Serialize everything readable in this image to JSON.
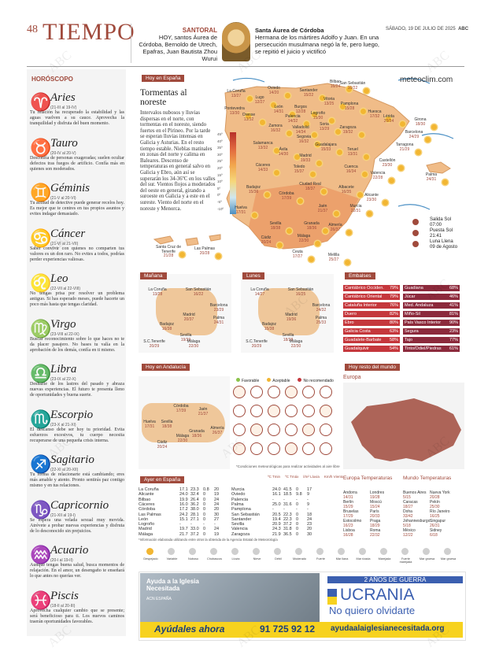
{
  "header": {
    "page_number": "48",
    "section": "TIEMPO",
    "date": "SÁBADO, 19 DE JULIO DE 2025",
    "paper": "ABC",
    "santoral_title": "SANTORAL",
    "santoral_text": "HOY, santos Áurea de Córdoba, Bernoldo de Utrech, Epafras, Juan Bautista Zhou Wurui",
    "saint_name": "Santa Áurea de Córdoba",
    "saint_text": "Hermana de los mártires Adolfo y Juan. En una persecución musulmana negó la fe, pero luego, se repitió el juicio y victificó"
  },
  "horoscope": {
    "title": "HORÓSCOPO",
    "signs": [
      {
        "glyph": "♈",
        "name": "Aries",
        "dates": "(21-III al 19-IV)",
        "text": "Tu relación ha recuperado la estabilidad y las aguas vuelven a su cauce. Aprovecha la tranquilidad y disfruta del buen momento."
      },
      {
        "glyph": "♉",
        "name": "Tauro",
        "dates": "(20-IV al 20-V)",
        "text": "Desconfía de personas exageradas; suelen ocultar defectos tras fuegos de artificio. Confía más en quienes son moderados."
      },
      {
        "glyph": "♊",
        "name": "Géminis",
        "dates": "(21-V al 20-VI)",
        "text": "Tu actitud de detective puede generar recelos hoy. Es mejor que te centres en tus propios asuntos y evites indagar demasiado."
      },
      {
        "glyph": "♋",
        "name": "Cáncer",
        "dates": "(21-VI al 21-VII)",
        "text": "Saber convivir con quienes no comparten tus valores es un don raro. No evites a todos, podrías perder experiencias valiosas."
      },
      {
        "glyph": "♌",
        "name": "Leo",
        "dates": "(22-VII al 22-VIII)",
        "text": "No tengas prisa por resolver un problema antiguo. Si has esperado meses, puede hacerte un poco más hasta que tengas claridad."
      },
      {
        "glyph": "♍",
        "name": "Virgo",
        "dates": "(23-VIII al 22-IX)",
        "text": "Buscar reconocimiento sobre lo que haces no te da placer pasajero. No bases tu valía en la aprobación de los demás, confía en ti mismo."
      },
      {
        "glyph": "♎",
        "name": "Libra",
        "dates": "(23-IX al 22-X)",
        "text": "Deshazte de los lastres del pasado y abraza nuevas experiencias. El futuro te presenta lleno de oportunidades y buena suerte."
      },
      {
        "glyph": "♏",
        "name": "Escorpio",
        "dates": "(23-X al 21-XI)",
        "text": "El descanso debe ser hoy tu prioridad. Evita esfuerzos excesivos, tu cuerpo necesita recuperarse de una pequeña crisis interna."
      },
      {
        "glyph": "♐",
        "name": "Sagitario",
        "dates": "(22-XI al 20-XII)",
        "text": "Tu forma de relacionarte está cambiando; eres más amable y atento. Pronto sentirás paz contigo mismo y en tus relaciones."
      },
      {
        "glyph": "♑",
        "name": "Capricornio",
        "dates": "(21-XII al 19-I)",
        "text": "Se espera una velada sexual muy movida. Atrévete a probar nuevas experiencias y disfruta de lo desconocido sin prejuicios."
      },
      {
        "glyph": "♒",
        "name": "Acuario",
        "dates": "(20-I al 19-II)",
        "text": "Aunque tengas buena salud, busca momentos de relajación. En el amor, un desengaño te enseñará lo que antes no querías ver."
      },
      {
        "glyph": "♓",
        "name": "Piscis",
        "dates": "(18-II al 20-III)",
        "text": "Aprovecha cualquier cambio que se presente; será beneficioso para ti. Los nuevos caminos traerán oportunidades favorables."
      }
    ]
  },
  "spain_map": {
    "tag": "Hoy en España",
    "site": "meteoclim.com",
    "headline": "Tormentas al noreste",
    "story": "Intervalos nubosos y lluvias dispersas en el norte, con tormentas en el noreste, siendo fuertes en el Pirineo. Por la tarde se esperan lluvias intensas en Galicia y Asturias. En el resto tiempo estable. Nieblas matinales en zonas del norte y calima en Baleares. Descenso de temperaturas en general salvo en Galicia y Ebro, aún así se superarán los 34-36ºC en los valles del sur. Vientos flojos a moderados del oeste en general, girando a suroeste en Galicia y a este en el sureste. Viento del norte en el noreste y Menorca.",
    "scale": [
      "45º",
      "40º",
      "35º",
      "30º",
      "25º",
      "20º",
      "15º",
      "10º",
      "5º",
      "0º",
      "-5º",
      "-10º"
    ],
    "cities": [
      {
        "name": "La Coruña",
        "t": "13/27"
      },
      {
        "name": "Oviedo",
        "t": "14/20"
      },
      {
        "name": "Santander",
        "t": "15/22"
      },
      {
        "name": "Bilbao",
        "t": "16/24"
      },
      {
        "name": "San Sebastián",
        "t": "16/22"
      },
      {
        "name": "Lugo",
        "t": "12/27"
      },
      {
        "name": "Pontevedra",
        "t": "13/30"
      },
      {
        "name": "Orense",
        "t": "13/32"
      },
      {
        "name": "León",
        "t": "14/31"
      },
      {
        "name": "Burgos",
        "t": "12/28"
      },
      {
        "name": "Vitoria",
        "t": "13/25"
      },
      {
        "name": "Pamplona",
        "t": "15/28"
      },
      {
        "name": "Huesca",
        "t": "17/32"
      },
      {
        "name": "Lérida",
        "t": "20/34"
      },
      {
        "name": "Girona",
        "t": "18/30"
      },
      {
        "name": "Barcelona",
        "t": "24/29"
      },
      {
        "name": "Palencia",
        "t": "14/32"
      },
      {
        "name": "Logroño",
        "t": "15/30"
      },
      {
        "name": "Zaragoza",
        "t": "19/32"
      },
      {
        "name": "Zamora",
        "t": "16/32"
      },
      {
        "name": "Valladolid",
        "t": "14/34"
      },
      {
        "name": "Soria",
        "t": "13/29"
      },
      {
        "name": "Tarragona",
        "t": "21/29"
      },
      {
        "name": "Salamanca",
        "t": "13/32"
      },
      {
        "name": "Segovia",
        "t": "16/32"
      },
      {
        "name": "Guadalajara",
        "t": "15/33"
      },
      {
        "name": "Teruel",
        "t": "13/31"
      },
      {
        "name": "Castellón",
        "t": "23/30"
      },
      {
        "name": "Ávila",
        "t": "14/30"
      },
      {
        "name": "Madrid",
        "t": "19/33"
      },
      {
        "name": "Cuenca",
        "t": "16/34"
      },
      {
        "name": "Palma",
        "t": "24/31"
      },
      {
        "name": "Cáceres",
        "t": "14/33"
      },
      {
        "name": "Toledo",
        "t": "15/37"
      },
      {
        "name": "Valencia",
        "t": "22/28"
      },
      {
        "name": "Badajoz",
        "t": "15/36"
      },
      {
        "name": "Ciudad Real",
        "t": "18/37"
      },
      {
        "name": "Albacete",
        "t": "16/35"
      },
      {
        "name": "Alicante",
        "t": "23/30"
      },
      {
        "name": "Huelva",
        "t": "17/31"
      },
      {
        "name": "Córdoba",
        "t": "17/39"
      },
      {
        "name": "Jaén",
        "t": "21/37"
      },
      {
        "name": "Murcia",
        "t": "22/31"
      },
      {
        "name": "Sevilla",
        "t": "18/38"
      },
      {
        "name": "Granada",
        "t": "18/36"
      },
      {
        "name": "Almería",
        "t": "26/37"
      },
      {
        "name": "Cádiz",
        "t": "20/24"
      },
      {
        "name": "Málaga",
        "t": "22/30"
      },
      {
        "name": "Ceuta",
        "t": "17/27"
      },
      {
        "name": "Melilla",
        "t": "25/27"
      },
      {
        "name": "Santa Cruz de Tenerife",
        "t": "21/28"
      },
      {
        "name": "Las Palmas",
        "t": "20/28"
      }
    ],
    "sun": [
      {
        "label": "Salida Sol",
        "value": "07:00"
      },
      {
        "label": "Puesta Sol",
        "value": "21:41"
      },
      {
        "label": "Luna Llena",
        "value": "09 de Agosto"
      }
    ]
  },
  "small_maps": [
    {
      "tag": "Mañana",
      "cities": [
        {
          "name": "La Coruña",
          "t": "13/28"
        },
        {
          "name": "San Sebastián",
          "t": "16/22"
        },
        {
          "name": "Barcelona",
          "t": "23/29"
        },
        {
          "name": "Madrid",
          "t": "20/37"
        },
        {
          "name": "Palma",
          "t": "24/31"
        },
        {
          "name": "Badajoz",
          "t": "16/38"
        },
        {
          "name": "Sevilla",
          "t": "19/39"
        },
        {
          "name": "Málaga",
          "t": "22/30"
        },
        {
          "name": "S.C.Tenerife",
          "t": "20/29"
        }
      ]
    },
    {
      "tag": "Lunes",
      "cities": [
        {
          "name": "La Coruña",
          "t": "14/27"
        },
        {
          "name": "San Sebastián",
          "t": "16/25"
        },
        {
          "name": "Barcelona",
          "t": "24/32"
        },
        {
          "name": "Madrid",
          "t": "19/36"
        },
        {
          "name": "Palma",
          "t": "25/33"
        },
        {
          "name": "Badajoz",
          "t": "15/38"
        },
        {
          "name": "Sevilla",
          "t": "18/38"
        },
        {
          "name": "Málaga",
          "t": "22/30"
        },
        {
          "name": "S.C.Tenerife",
          "t": "20/29"
        }
      ]
    }
  ],
  "embalses": {
    "tag": "Embalses",
    "left": [
      {
        "name": "Cantábrico Occiden.",
        "v": "79%"
      },
      {
        "name": "Cantábrico Oriental",
        "v": "79%"
      },
      {
        "name": "Cataluña Interior",
        "v": "76%"
      },
      {
        "name": "Duero",
        "v": "82%"
      },
      {
        "name": "Ebro",
        "v": "80%"
      },
      {
        "name": "Galicia Costa",
        "v": "63%"
      },
      {
        "name": "Guadalete-Barbate",
        "v": "58%"
      },
      {
        "name": "Guadalquivir",
        "v": "54%"
      }
    ],
    "right": [
      {
        "name": "Guadiana",
        "v": "68%"
      },
      {
        "name": "Júcar",
        "v": "46%"
      },
      {
        "name": "Med. Andaluza",
        "v": "41%"
      },
      {
        "name": "Miño-Sil",
        "v": "81%"
      },
      {
        "name": "País Vasco Interior",
        "v": "90%"
      },
      {
        "name": "Segura",
        "v": "23%"
      },
      {
        "name": "Tajo",
        "v": "77%"
      },
      {
        "name": "Tinto/Odiel/Piedras",
        "v": "61%"
      }
    ]
  },
  "andalucia": {
    "tag": "Hoy en Andalucía",
    "legend": [
      "Favorable",
      "Aceptable",
      "No recomendado"
    ],
    "cities": [
      {
        "name": "Córdoba",
        "t": "17/39"
      },
      {
        "name": "Jaén",
        "t": "21/37"
      },
      {
        "name": "Huelva",
        "t": "17/31"
      },
      {
        "name": "Sevilla",
        "t": "18/38"
      },
      {
        "name": "Granada",
        "t": "18/36"
      },
      {
        "name": "Almería",
        "t": "26/37"
      },
      {
        "name": "Málaga",
        "t": "22/30"
      },
      {
        "name": "Cádiz",
        "t": "20/24"
      }
    ],
    "note": "*Condiciones meteorológicas para realizar actividades al aire libre"
  },
  "mundo": {
    "tag": "Hoy resto del mundo",
    "region": "Europa"
  },
  "ayer": {
    "tag": "Ayer en España",
    "headers": [
      "ºC Tmin",
      "ºC Tmáx",
      "l/m² Lluvia",
      "Km/h Viento"
    ],
    "left": [
      [
        "La Coruña",
        "17.1",
        "23.3",
        "0.8",
        "20"
      ],
      [
        "Alicante",
        "24.0",
        "32.4",
        "0",
        "19"
      ],
      [
        "Bilbao",
        "19.9",
        "26.4",
        "0",
        "24"
      ],
      [
        "Cáceres",
        "16.0",
        "36.2",
        "0",
        "24"
      ],
      [
        "Córdoba",
        "17.2",
        "38.0",
        "0",
        "20"
      ],
      [
        "Las Palmas",
        "24.2",
        "28.1",
        "0",
        "30"
      ],
      [
        "León",
        "15.1",
        "27.1",
        "0",
        "27"
      ],
      [
        "Logroño",
        "-",
        "-",
        "-",
        "-"
      ],
      [
        "Madrid",
        "19.7",
        "33.0",
        "0",
        "24"
      ],
      [
        "Málaga",
        "21.7",
        "37.2",
        "0",
        "19"
      ]
    ],
    "right": [
      [
        "Murcia",
        "24.0",
        "41.5",
        "0",
        "17"
      ],
      [
        "Oviedo",
        "16.1",
        "18.5",
        "9.8",
        "9"
      ],
      [
        "Palencia",
        "-",
        "-",
        "-",
        "-"
      ],
      [
        "Palma",
        "25.0",
        "31.6",
        "0",
        "9"
      ],
      [
        "Pamplona",
        "-",
        "-",
        "-",
        "-"
      ],
      [
        "San Sebastián",
        "20.5",
        "22.3",
        "0",
        "18"
      ],
      [
        "Santander",
        "19.4",
        "22.3",
        "0",
        "24"
      ],
      [
        "Sevilla",
        "20.9",
        "37.2",
        "0",
        "23"
      ],
      [
        "Valencia",
        "24.3",
        "31.8",
        "0",
        "20"
      ],
      [
        "Zaragoza",
        "21.9",
        "36.5",
        "0",
        "30"
      ]
    ],
    "note": "*Información elaborada utilizando entre otros la obtenida de la Agencia Estatal de Meteorología"
  },
  "temps_europa": {
    "title": "Europa Temperaturas",
    "items": [
      [
        "Andorra",
        "14/31"
      ],
      [
        "Londres",
        "19/28"
      ],
      [
        "Berlín",
        "15/29"
      ],
      [
        "Moscú",
        "15/24"
      ],
      [
        "Bruselas",
        "17/29"
      ],
      [
        "París",
        "20/33"
      ],
      [
        "Estocolmo",
        "16/23"
      ],
      [
        "Praga",
        "18/29"
      ],
      [
        "Lisboa",
        "16/28"
      ],
      [
        "Roma",
        "22/32"
      ]
    ]
  },
  "temps_mundo": {
    "title": "Mundo Temperaturas",
    "items": [
      [
        "Buenos Aires",
        "5/15"
      ],
      [
        "Nueva York",
        "20/28"
      ],
      [
        "Caracas",
        "18/27"
      ],
      [
        "Pekín",
        "25/30"
      ],
      [
        "Doha",
        "33/42"
      ],
      [
        "Río Janeiro",
        "16/25"
      ],
      [
        "Johannesburgo",
        "5/18"
      ],
      [
        "Singapur",
        "26/31"
      ],
      [
        "México",
        "12/22"
      ],
      [
        "Sidney",
        "6/18"
      ]
    ]
  },
  "legend_icons": [
    "Despejado",
    "Variable",
    "Nuboso",
    "Chubascos",
    "Lluvia",
    "Nieve",
    "Débil",
    "Moderado",
    "Fuerte",
    "Mar llana",
    "Mar rizada",
    "Marejada",
    "Fuerte marejada",
    "Mar gruesa",
    "Mar gruesa"
  ],
  "ad": {
    "org1": "Ayuda a la Iglesia Necesitada",
    "org2": "ACN ESPAÑA",
    "years": "2 AÑOS DE GUERRA",
    "country": "UCRANIA",
    "slogan": "No quiero olvidarte",
    "cta": "Ayúdales ahora",
    "phone": "91 725 92 12",
    "url": "ayudaalaiglesianecesitada.org"
  },
  "watermark": "ABC"
}
